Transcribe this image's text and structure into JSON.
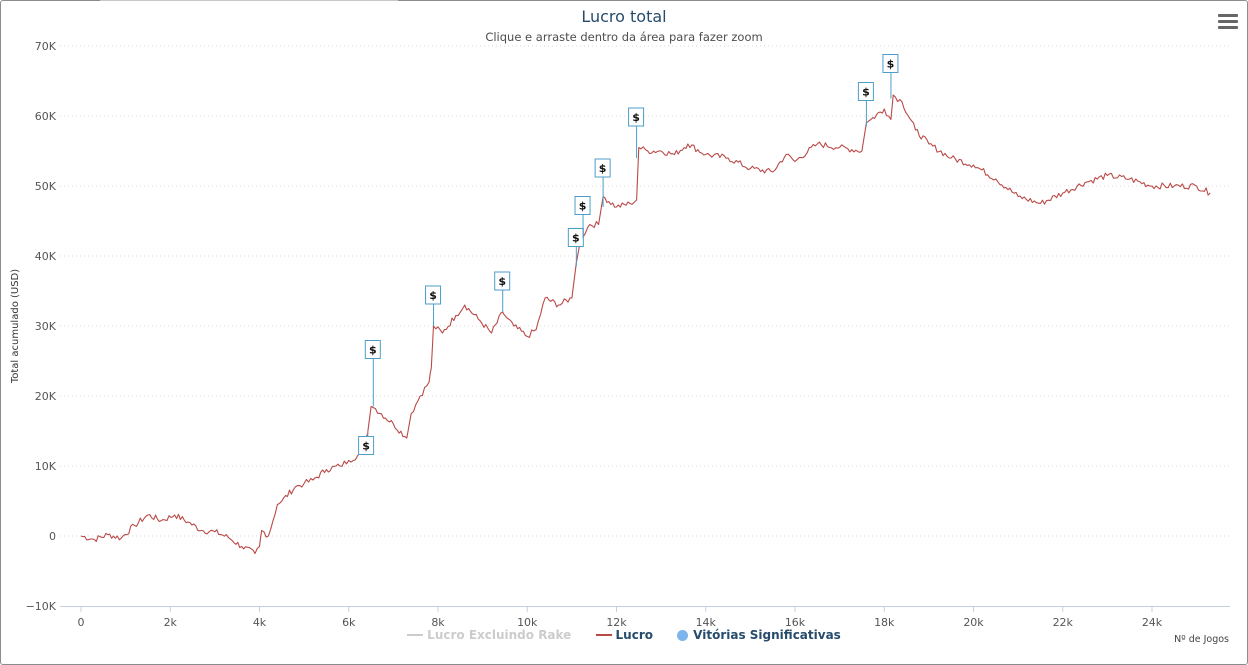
{
  "colors": {
    "lucro": "#b94a48",
    "rake": "#cccccc",
    "vitorias": "#7cb5ec",
    "flag_border": "#4c9ec9"
  },
  "menu_icon": "hamburger-menu-icon",
  "chart_data": {
    "type": "line",
    "title": "Lucro total",
    "subtitle": "Clique e arraste dentro da área para fazer zoom",
    "ylabel": "Total acumulado (USD)",
    "xlabel": "Nº de Jogos",
    "xlim": [
      -500,
      25500
    ],
    "ylim": [
      -10000,
      70000
    ],
    "xticks": [
      0,
      2000,
      4000,
      6000,
      8000,
      10000,
      12000,
      14000,
      16000,
      18000,
      20000,
      22000,
      24000
    ],
    "xtick_labels": [
      "0",
      "2k",
      "4k",
      "6k",
      "8k",
      "10k",
      "12k",
      "14k",
      "16k",
      "18k",
      "20k",
      "22k",
      "24k"
    ],
    "yticks": [
      -10000,
      0,
      10000,
      20000,
      30000,
      40000,
      50000,
      60000,
      70000
    ],
    "ytick_labels": [
      "−10K",
      "0",
      "10K",
      "20K",
      "30K",
      "40K",
      "50K",
      "60K",
      "70K"
    ],
    "grid": true,
    "legend_position": "bottom",
    "series": [
      {
        "name": "Lucro Excluindo Rake",
        "visible": false,
        "x": [],
        "y": []
      },
      {
        "name": "Lucro",
        "x": [
          0,
          300,
          600,
          900,
          1200,
          1500,
          1800,
          2100,
          2400,
          2700,
          3000,
          3300,
          3600,
          3900,
          4000,
          4050,
          4200,
          4400,
          4500,
          4800,
          5000,
          5200,
          5500,
          5800,
          6000,
          6200,
          6400,
          6430,
          6500,
          6600,
          7000,
          7300,
          7400,
          7600,
          7800,
          7850,
          7900,
          8100,
          8400,
          8600,
          8900,
          9200,
          9450,
          9500,
          9700,
          10000,
          10200,
          10400,
          10700,
          11000,
          11100,
          11200,
          11400,
          11600,
          11700,
          12000,
          12300,
          12450,
          12500,
          12700,
          13000,
          13300,
          13600,
          14000,
          14500,
          15000,
          15500,
          15800,
          16000,
          16500,
          17000,
          17500,
          17600,
          17700,
          18000,
          18150,
          18200,
          18400,
          18700,
          19000,
          19500,
          20000,
          20500,
          21000,
          21500,
          22000,
          22500,
          23000,
          23500,
          24000,
          24500,
          25000,
          25300
        ],
        "y": [
          0,
          -500,
          200,
          -300,
          1500,
          3000,
          2200,
          3000,
          2000,
          800,
          600,
          -200,
          -1500,
          -2500,
          -1500,
          800,
          0,
          4500,
          5000,
          7000,
          7500,
          8000,
          9500,
          10000,
          10800,
          11500,
          12500,
          15000,
          18500,
          18200,
          16000,
          14000,
          17500,
          20000,
          22000,
          24000,
          30000,
          29000,
          31500,
          33000,
          31000,
          29000,
          32000,
          31500,
          30000,
          28500,
          29500,
          34000,
          33000,
          34000,
          39000,
          42500,
          44500,
          44500,
          48500,
          47000,
          47500,
          48000,
          55500,
          55000,
          55000,
          54500,
          56000,
          54500,
          54000,
          52500,
          52000,
          54500,
          53500,
          56000,
          55500,
          55000,
          59000,
          59500,
          61000,
          59500,
          63000,
          62000,
          58000,
          56000,
          54000,
          53000,
          51000,
          48500,
          47500,
          49000,
          50500,
          51500,
          51000,
          50000,
          50000,
          50000,
          49000
        ]
      },
      {
        "name": "Vitórias Significativas",
        "type": "flags",
        "points": [
          {
            "x": 6400,
            "y": 14500,
            "label": "$"
          },
          {
            "x": 6550,
            "y": 18500,
            "label": "$"
          },
          {
            "x": 7900,
            "y": 30000,
            "label": "$"
          },
          {
            "x": 9450,
            "y": 32000,
            "label": "$"
          },
          {
            "x": 11100,
            "y": 38500,
            "label": "$"
          },
          {
            "x": 11250,
            "y": 42500,
            "label": "$"
          },
          {
            "x": 11700,
            "y": 47000,
            "label": "$"
          },
          {
            "x": 12450,
            "y": 54000,
            "label": "$"
          },
          {
            "x": 17600,
            "y": 58500,
            "label": "$"
          },
          {
            "x": 18150,
            "y": 62500,
            "label": "$"
          }
        ]
      }
    ]
  }
}
